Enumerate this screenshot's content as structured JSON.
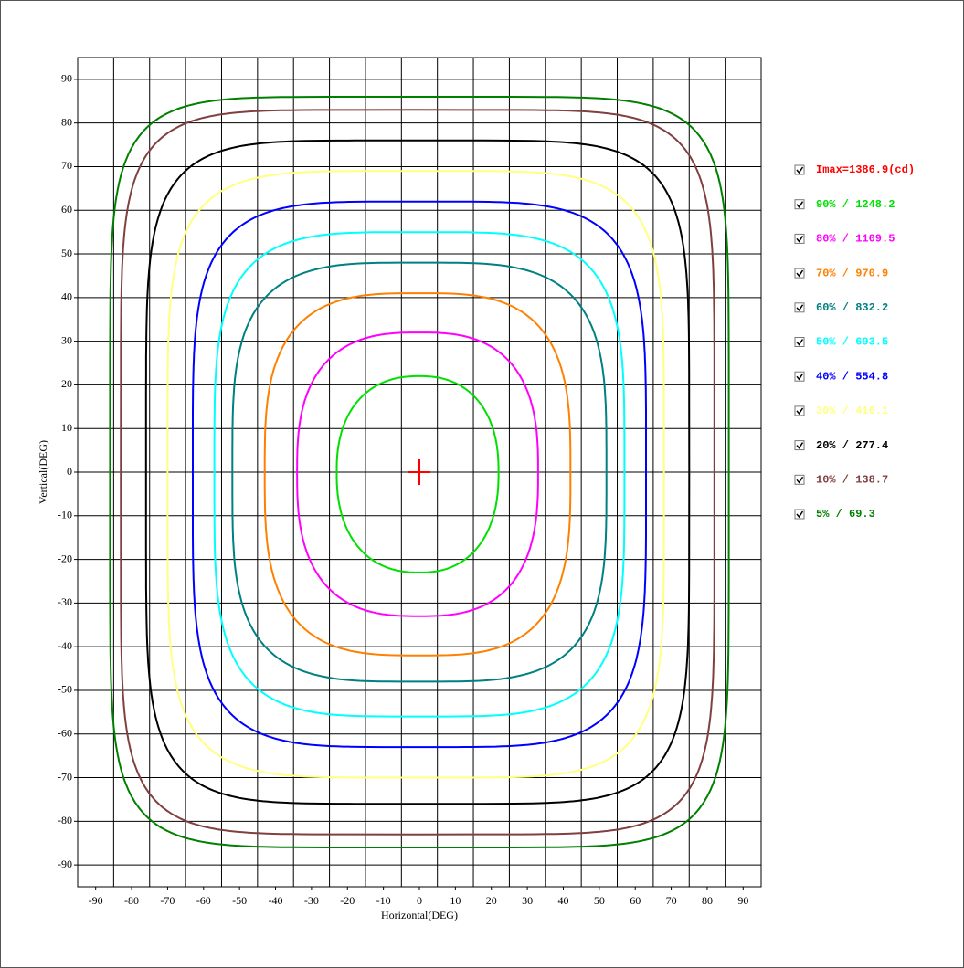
{
  "chart_data": {
    "type": "contour",
    "xlabel": "Horizontal(DEG)",
    "ylabel": "Vertical(DEG)",
    "xlim": [
      -95,
      95
    ],
    "ylim": [
      -95,
      95
    ],
    "xticks": [
      -90,
      -80,
      -70,
      -60,
      -50,
      -40,
      -30,
      -20,
      -10,
      0,
      10,
      20,
      30,
      40,
      50,
      60,
      70,
      80,
      90
    ],
    "yticks": [
      -90,
      -80,
      -70,
      -60,
      -50,
      -40,
      -30,
      -20,
      -10,
      0,
      10,
      20,
      30,
      40,
      50,
      60,
      70,
      80,
      90
    ],
    "xgrid": [
      -85,
      -75,
      -65,
      -55,
      -45,
      -35,
      -25,
      -15,
      -5,
      5,
      15,
      25,
      35,
      45,
      55,
      65,
      75,
      85
    ],
    "grid": true,
    "max_label": "Imax=1386.9(cd)",
    "max_color": "#ff0000",
    "max_point": [
      0,
      0
    ],
    "series": [
      {
        "name": "90% / 1248.2",
        "color": "#00e000",
        "xrange": [
          -23,
          22
        ],
        "yrange": [
          -23,
          22
        ]
      },
      {
        "name": "80% / 1109.5",
        "color": "#ff00ff",
        "xrange": [
          -34,
          33
        ],
        "yrange": [
          -33,
          32
        ]
      },
      {
        "name": "70% / 970.9",
        "color": "#ff8000",
        "xrange": [
          -43,
          42
        ],
        "yrange": [
          -42,
          41
        ]
      },
      {
        "name": "60% / 832.2",
        "color": "#008080",
        "xrange": [
          -52,
          52
        ],
        "yrange": [
          -48,
          48
        ]
      },
      {
        "name": "50% / 693.5",
        "color": "#00ffff",
        "xrange": [
          -57,
          57
        ],
        "yrange": [
          -56,
          55
        ]
      },
      {
        "name": "40% / 554.8",
        "color": "#0000ff",
        "xrange": [
          -63,
          63
        ],
        "yrange": [
          -63,
          62
        ]
      },
      {
        "name": "30% / 416.1",
        "color": "#ffff80",
        "xrange": [
          -70,
          68
        ],
        "yrange": [
          -70,
          69
        ]
      },
      {
        "name": "20% / 277.4",
        "color": "#000000",
        "xrange": [
          -76,
          75
        ],
        "yrange": [
          -76,
          76
        ]
      },
      {
        "name": "10% / 138.7",
        "color": "#804040",
        "xrange": [
          -83,
          82
        ],
        "yrange": [
          -83,
          83
        ]
      },
      {
        "name": "5% / 69.3",
        "color": "#008000",
        "xrange": [
          -86,
          86
        ],
        "yrange": [
          -86,
          86
        ]
      }
    ]
  }
}
